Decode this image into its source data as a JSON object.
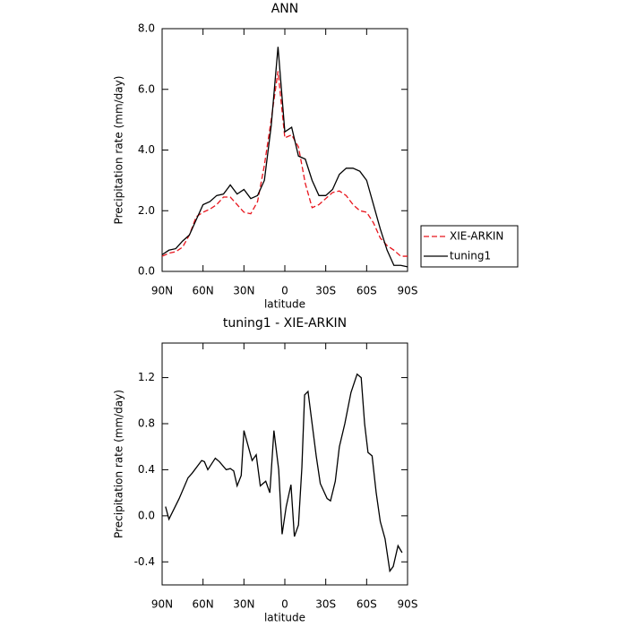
{
  "chart_data": [
    {
      "type": "line",
      "title": "ANN",
      "xlabel": "latitude",
      "ylabel": "Precipitation rate (mm/day)",
      "xlim": [
        90,
        -90
      ],
      "xticks": [
        {
          "value": 90,
          "label": "90N"
        },
        {
          "value": 60,
          "label": "60N"
        },
        {
          "value": 30,
          "label": "30N"
        },
        0,
        {
          "value": -30,
          "label": "30S"
        },
        {
          "value": -60,
          "label": "60S"
        },
        {
          "value": -90,
          "label": "90S"
        }
      ],
      "ylim": [
        0,
        8
      ],
      "yticks": [
        {
          "value": 0,
          "label": "0.0"
        },
        {
          "value": 2,
          "label": "2.0"
        },
        {
          "value": 4,
          "label": "4.0"
        },
        {
          "value": 6,
          "label": "6.0"
        },
        {
          "value": 8,
          "label": "8.0"
        }
      ],
      "legend": "outside-right",
      "x": [
        90,
        85,
        80,
        75,
        70,
        65,
        60,
        55,
        50,
        45,
        40,
        35,
        30,
        25,
        20,
        15,
        10,
        5,
        0,
        -5,
        -10,
        -15,
        -20,
        -25,
        -30,
        -35,
        -40,
        -45,
        -50,
        -55,
        -60,
        -65,
        -70,
        -75,
        -80,
        -85,
        -90
      ],
      "series": [
        {
          "name": "XIE-ARKIN",
          "color": "#e8141c",
          "line_style": "dashed",
          "values": [
            0.5,
            0.6,
            0.65,
            0.8,
            1.2,
            1.8,
            1.95,
            2.05,
            2.2,
            2.45,
            2.45,
            2.2,
            1.95,
            1.9,
            2.3,
            3.5,
            5.0,
            6.6,
            4.4,
            4.5,
            4.1,
            2.9,
            2.1,
            2.2,
            2.4,
            2.6,
            2.65,
            2.5,
            2.2,
            2.0,
            1.95,
            1.6,
            1.1,
            0.85,
            0.7,
            0.5,
            0.5
          ]
        },
        {
          "name": "tuning1",
          "color": "#000000",
          "line_style": "solid",
          "values": [
            0.55,
            0.7,
            0.75,
            1.0,
            1.2,
            1.7,
            2.2,
            2.3,
            2.5,
            2.55,
            2.85,
            2.55,
            2.7,
            2.4,
            2.5,
            3.0,
            4.8,
            7.4,
            4.6,
            4.75,
            3.8,
            3.7,
            3.0,
            2.5,
            2.5,
            2.7,
            3.2,
            3.4,
            3.4,
            3.3,
            3.0,
            2.2,
            1.4,
            0.7,
            0.2,
            0.2,
            0.15
          ]
        }
      ]
    },
    {
      "type": "line",
      "title": "tuning1 - XIE-ARKIN",
      "xlabel": "latitude",
      "ylabel": "Precipitation rate (mm/day)",
      "xlim": [
        90,
        -90
      ],
      "xticks": [
        {
          "value": 90,
          "label": "90N"
        },
        {
          "value": 60,
          "label": "60N"
        },
        {
          "value": 30,
          "label": "30N"
        },
        0,
        {
          "value": -30,
          "label": "30S"
        },
        {
          "value": -60,
          "label": "60S"
        },
        {
          "value": -90,
          "label": "90S"
        }
      ],
      "ylim": [
        -0.6,
        1.5
      ],
      "yticks": [
        -0.4,
        {
          "value": 0,
          "label": "0.0"
        },
        0.4,
        0.8,
        1.2
      ],
      "x": [
        87.5,
        85,
        77.5,
        71,
        68,
        61,
        59,
        56.5,
        51,
        48,
        43,
        40,
        37.5,
        35,
        32,
        30,
        24,
        21,
        18,
        14,
        11,
        8,
        4.5,
        2,
        -1,
        -4.5,
        -7,
        -10,
        -12.5,
        -14.5,
        -17,
        -20,
        -23,
        -26,
        -31,
        -33.5,
        -37,
        -40,
        -44,
        -48.5,
        -53,
        -56,
        -58.5,
        -61,
        -64,
        -67,
        -70,
        -73.5,
        -77,
        -79.5,
        -83,
        -86
      ],
      "series": [
        {
          "name": "tuning1 - XIE-ARKIN",
          "color": "#000000",
          "line_style": "solid",
          "values": [
            0.08,
            -0.03,
            0.15,
            0.33,
            0.37,
            0.48,
            0.47,
            0.4,
            0.5,
            0.47,
            0.4,
            0.41,
            0.39,
            0.26,
            0.35,
            0.74,
            0.48,
            0.53,
            0.26,
            0.3,
            0.2,
            0.74,
            0.4,
            -0.16,
            0.08,
            0.27,
            -0.18,
            -0.08,
            0.42,
            1.05,
            1.08,
            0.8,
            0.52,
            0.28,
            0.15,
            0.13,
            0.3,
            0.6,
            0.8,
            1.07,
            1.23,
            1.2,
            0.8,
            0.55,
            0.52,
            0.2,
            -0.05,
            -0.2,
            -0.48,
            -0.44,
            -0.26,
            -0.32
          ]
        }
      ]
    }
  ]
}
